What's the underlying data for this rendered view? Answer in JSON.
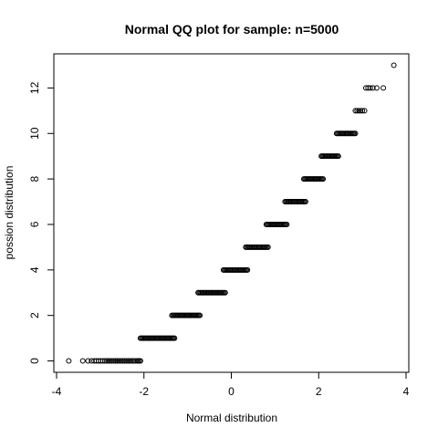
{
  "chart_data": {
    "type": "scatter",
    "title": "Normal QQ plot for sample: n=5000",
    "xlabel": "Normal distribution",
    "ylabel": "possion distribution",
    "xlim": [
      -4,
      4
    ],
    "ylim": [
      -0.5,
      13.5
    ],
    "xticks": [
      -4,
      -2,
      0,
      2,
      4
    ],
    "yticks": [
      0,
      2,
      4,
      6,
      8,
      10,
      12
    ],
    "grid": false,
    "legend": "none",
    "marker": "open-circle",
    "color": "#000000",
    "levels": [
      {
        "y": 0,
        "x_start": -2.16,
        "x_end": -2.08,
        "sparse_x": [
          -3.72,
          -3.4,
          -3.28,
          -3.2,
          -3.14,
          -3.09,
          -3.04,
          -2.99,
          -2.94,
          -2.89,
          -2.85,
          -2.81,
          -2.77,
          -2.73,
          -2.69,
          -2.65,
          -2.61,
          -2.57,
          -2.53,
          -2.49,
          -2.45,
          -2.41,
          -2.37,
          -2.33,
          -2.29,
          -2.25,
          -2.21
        ]
      },
      {
        "y": 1,
        "x_start": -2.08,
        "x_end": -1.3
      },
      {
        "y": 2,
        "x_start": -1.36,
        "x_end": -0.72
      },
      {
        "y": 3,
        "x_start": -0.76,
        "x_end": -0.14
      },
      {
        "y": 4,
        "x_start": -0.18,
        "x_end": 0.37
      },
      {
        "y": 5,
        "x_start": 0.33,
        "x_end": 0.84
      },
      {
        "y": 6,
        "x_start": 0.8,
        "x_end": 1.27
      },
      {
        "y": 7,
        "x_start": 1.23,
        "x_end": 1.7
      },
      {
        "y": 8,
        "x_start": 1.66,
        "x_end": 2.1
      },
      {
        "y": 9,
        "x_start": 2.06,
        "x_end": 2.45
      },
      {
        "y": 10,
        "x_start": 2.41,
        "x_end": 2.84
      },
      {
        "y": 11,
        "x_start": 2.84,
        "x_end": 3.05,
        "sparse_x": [
          2.84,
          2.88,
          2.92,
          2.96,
          3.0,
          3.05
        ]
      },
      {
        "y": 12,
        "x_start": 3.08,
        "x_end": 3.48,
        "sparse_x": [
          3.08,
          3.13,
          3.18,
          3.24,
          3.33,
          3.48
        ]
      },
      {
        "y": 13,
        "x_start": 3.72,
        "x_end": 3.72,
        "sparse_x": [
          3.72
        ]
      }
    ]
  }
}
